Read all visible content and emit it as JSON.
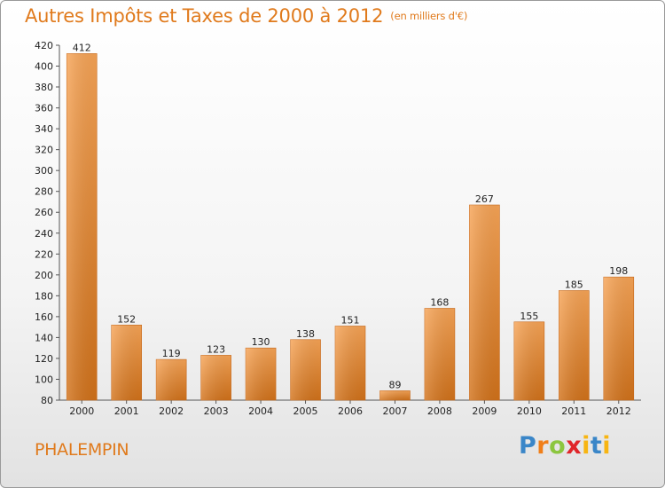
{
  "header": {
    "title": "Autres Impôts et Taxes de 2000 à 2012",
    "subtitle": "(en milliers d'€)"
  },
  "footer": {
    "commune": "PHALEMPIN",
    "logo": {
      "p": "P",
      "r": "r",
      "o": "o",
      "x": "x",
      "i": "i",
      "t": "t",
      "i2": "i"
    }
  },
  "colors": {
    "accent": "#e07a1c",
    "bar_light": "#f7a456",
    "bar_dark": "#d2721a"
  },
  "chart_data": {
    "type": "bar",
    "categories": [
      "2000",
      "2001",
      "2002",
      "2003",
      "2004",
      "2005",
      "2006",
      "2007",
      "2008",
      "2009",
      "2010",
      "2011",
      "2012"
    ],
    "values": [
      412,
      152,
      119,
      123,
      130,
      138,
      151,
      89,
      168,
      267,
      155,
      185,
      198
    ],
    "title": "Autres Impôts et Taxes de 2000 à 2012",
    "subtitle": "(en milliers d'€)",
    "ylim": [
      80,
      420
    ],
    "yticks": [
      80,
      100,
      120,
      140,
      160,
      180,
      200,
      220,
      240,
      260,
      280,
      300,
      320,
      340,
      360,
      380,
      400,
      420
    ],
    "grid": false,
    "legend": "none"
  }
}
